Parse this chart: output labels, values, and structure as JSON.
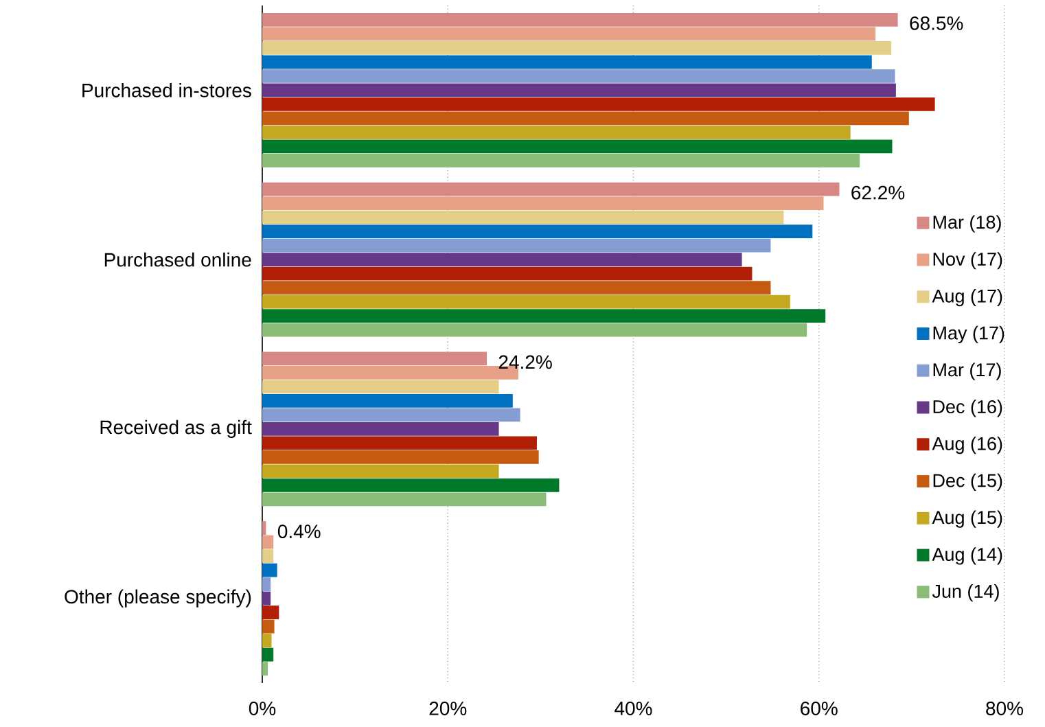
{
  "chart_data": {
    "type": "bar",
    "orientation": "horizontal",
    "categories": [
      "Purchased in-stores",
      "Purchased online",
      "Received as a gift",
      "Other (please specify)"
    ],
    "series": [
      {
        "name": "Mar (18)",
        "color": "#d88884",
        "values": [
          68.5,
          62.2,
          24.2,
          0.4
        ],
        "value_labels": [
          "68.5%",
          "62.2%",
          "24.2%",
          "0.4%"
        ]
      },
      {
        "name": "Nov (17)",
        "color": "#e8a086",
        "values": [
          66.1,
          60.5,
          27.6,
          1.2
        ]
      },
      {
        "name": "Aug (17)",
        "color": "#e5cf88",
        "values": [
          67.8,
          56.2,
          25.5,
          1.2
        ]
      },
      {
        "name": "May (17)",
        "color": "#0070c0",
        "values": [
          65.7,
          59.3,
          27.0,
          1.6
        ]
      },
      {
        "name": "Mar (17)",
        "color": "#869dd4",
        "values": [
          68.2,
          54.8,
          27.8,
          0.9
        ]
      },
      {
        "name": "Dec (16)",
        "color": "#673888",
        "values": [
          68.3,
          51.7,
          25.5,
          0.9
        ]
      },
      {
        "name": "Aug (16)",
        "color": "#b01f06",
        "values": [
          72.5,
          52.8,
          29.6,
          1.8
        ]
      },
      {
        "name": "Dec (15)",
        "color": "#c45b10",
        "values": [
          69.7,
          54.8,
          29.8,
          1.3
        ]
      },
      {
        "name": "Aug (15)",
        "color": "#c4a820",
        "values": [
          63.4,
          56.9,
          25.5,
          1.0
        ]
      },
      {
        "name": "Aug (14)",
        "color": "#007a2a",
        "values": [
          67.9,
          60.7,
          32.0,
          1.2
        ]
      },
      {
        "name": "Jun (14)",
        "color": "#8bbd78",
        "values": [
          64.4,
          58.7,
          30.6,
          0.6
        ]
      }
    ],
    "xlim": [
      0,
      80
    ],
    "xticks": [
      {
        "value": 0,
        "label": "0%"
      },
      {
        "value": 20,
        "label": "20%"
      },
      {
        "value": 40,
        "label": "40%"
      },
      {
        "value": 60,
        "label": "60%"
      },
      {
        "value": 80,
        "label": "80%"
      }
    ],
    "grid": "x",
    "legend": "right"
  }
}
